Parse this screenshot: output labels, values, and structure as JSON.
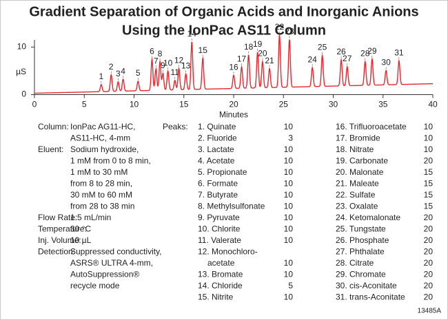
{
  "title": [
    "Gradient Separation of Organic Acids and Inorganic Anions",
    "Using the IonPac AS11 Column"
  ],
  "chart_data": {
    "type": "chromatogram",
    "x_label": "Minutes",
    "y_label": "µS",
    "xlim": [
      0,
      40
    ],
    "xticks": [
      0,
      5,
      10,
      15,
      20,
      25,
      30,
      35,
      40
    ],
    "ylim": [
      -0.5,
      11.5
    ],
    "yticks": [
      0,
      10
    ],
    "color": "#e8262e",
    "baseline": {
      "x": [
        0,
        40
      ],
      "values": [
        0.3,
        2.3
      ]
    },
    "peaks": {
      "labels": [
        "1",
        "2",
        "3",
        "4",
        "5",
        "6",
        "7",
        "8",
        "9",
        "10",
        "11",
        "12",
        "13",
        "14",
        "15",
        "16",
        "17",
        "18",
        "19",
        "20",
        "21",
        "22",
        "23",
        "24",
        "25",
        "26",
        "27",
        "28",
        "29",
        "30",
        "31"
      ],
      "x": [
        6.7,
        7.7,
        8.4,
        8.9,
        10.4,
        11.8,
        12.2,
        12.6,
        12.9,
        13.4,
        14.1,
        14.5,
        15.2,
        15.8,
        16.9,
        20.0,
        20.8,
        21.5,
        22.4,
        22.9,
        23.6,
        24.6,
        25.6,
        27.9,
        28.9,
        30.8,
        31.4,
        33.2,
        33.9,
        35.3,
        36.6
      ],
      "values": [
        1.5,
        3.5,
        2.0,
        2.5,
        2.0,
        6.5,
        4.5,
        6.0,
        3.5,
        4.0,
        2.0,
        4.5,
        3.3,
        10.0,
        6.5,
        2.8,
        4.5,
        7.0,
        7.5,
        5.5,
        4.0,
        11.0,
        10.0,
        4.0,
        6.5,
        5.5,
        4.0,
        5.0,
        5.5,
        3.0,
        5.0
      ]
    }
  },
  "conditions": [
    {
      "label": "Column:",
      "lines": [
        "IonPac AG11-HC,",
        "AS11-HC, 4-mm"
      ]
    },
    {
      "label": "Eluent:",
      "lines": [
        "Sodium hydroxide,",
        "1 mM from 0 to 8 min,",
        "1 mM to 30 mM",
        "from 8 to 28 min,",
        "30 mM to 60 mM",
        "from 28 to 38 min"
      ]
    },
    {
      "label": "Flow Rate:",
      "lines": [
        "1.5 mL/min"
      ]
    },
    {
      "label": "Temperature:",
      "lines": [
        "30 °C"
      ]
    },
    {
      "label": "Inj. Volume:",
      "lines": [
        "10 µL"
      ]
    },
    {
      "label": "Detection:",
      "lines": [
        "Suppressed conductivity,",
        "ASRS® ULTRA 4-mm,",
        "AutoSuppression®",
        "recycle mode"
      ]
    }
  ],
  "peaks_heading": "Peaks:",
  "peak_list": [
    {
      "lines": [
        "1. Quinate"
      ],
      "conc": 10
    },
    {
      "lines": [
        "2. Fluoride"
      ],
      "conc": 3
    },
    {
      "lines": [
        "3. Lactate"
      ],
      "conc": 10
    },
    {
      "lines": [
        "4. Acetate"
      ],
      "conc": 10
    },
    {
      "lines": [
        "5. Propionate"
      ],
      "conc": 10
    },
    {
      "lines": [
        "6. Formate"
      ],
      "conc": 10
    },
    {
      "lines": [
        "7. Butyrate"
      ],
      "conc": 10
    },
    {
      "lines": [
        "8. Methylsulfonate"
      ],
      "conc": 10
    },
    {
      "lines": [
        "9. Pyruvate"
      ],
      "conc": 10
    },
    {
      "lines": [
        "10. Chlorite"
      ],
      "conc": 10
    },
    {
      "lines": [
        "11. Valerate"
      ],
      "conc": 10
    },
    {
      "lines": [
        "12. Monochloro-",
        "acetate"
      ],
      "conc": 10
    },
    {
      "lines": [
        "13. Bromate"
      ],
      "conc": 10
    },
    {
      "lines": [
        "14. Chloride"
      ],
      "conc": 5
    },
    {
      "lines": [
        "15. Nitrite"
      ],
      "conc": 10
    },
    {
      "lines": [
        "16. Trifluoroacetate"
      ],
      "conc": 10
    },
    {
      "lines": [
        "17. Bromide"
      ],
      "conc": 10
    },
    {
      "lines": [
        "18. Nitrate"
      ],
      "conc": 10
    },
    {
      "lines": [
        "19. Carbonate"
      ],
      "conc": 20
    },
    {
      "lines": [
        "20. Malonate"
      ],
      "conc": 15
    },
    {
      "lines": [
        "21. Maleate"
      ],
      "conc": 15
    },
    {
      "lines": [
        "22. Sulfate"
      ],
      "conc": 15
    },
    {
      "lines": [
        "23. Oxalate"
      ],
      "conc": 15
    },
    {
      "lines": [
        "24. Ketomalonate"
      ],
      "conc": 20
    },
    {
      "lines": [
        "25. Tungstate"
      ],
      "conc": 20
    },
    {
      "lines": [
        "26. Phosphate"
      ],
      "conc": 20
    },
    {
      "lines": [
        "27. Phthalate"
      ],
      "conc": 20
    },
    {
      "lines": [
        "28. Citrate"
      ],
      "conc": 20
    },
    {
      "lines": [
        "29. Chromate"
      ],
      "conc": 20
    },
    {
      "lines": [
        "30. cis-Aconitate"
      ],
      "conc": 20
    },
    {
      "lines": [
        "31. trans-Aconitate"
      ],
      "conc": 20
    }
  ],
  "figure_id": "13485A"
}
